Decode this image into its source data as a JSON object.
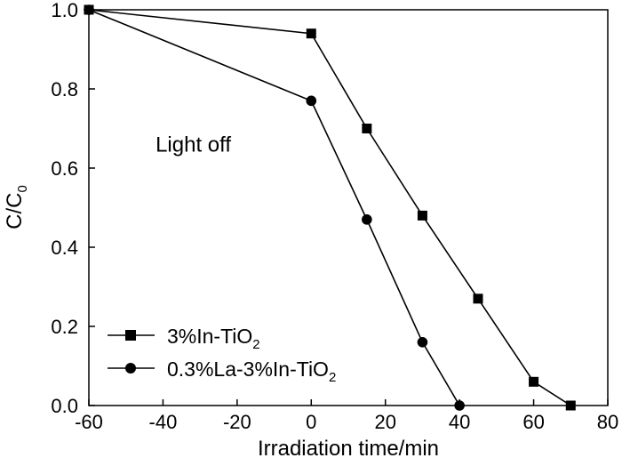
{
  "chart_data": {
    "type": "line",
    "title": "",
    "xlabel": "Irradiation time/min",
    "ylabel": {
      "main": "C/C",
      "sub": "0"
    },
    "xlim": [
      -60,
      80
    ],
    "ylim": [
      0.0,
      1.0
    ],
    "xticks": [
      -60,
      -40,
      -20,
      0,
      20,
      40,
      60,
      80
    ],
    "xtick_labels": [
      "-60",
      "-40",
      "-20",
      "0",
      "20",
      "40",
      "60",
      "80"
    ],
    "yticks": [
      0.0,
      0.2,
      0.4,
      0.6,
      0.8,
      1.0
    ],
    "ytick_labels": [
      "0.0",
      "0.2",
      "0.4",
      "0.6",
      "0.8",
      "1.0"
    ],
    "grid": false,
    "legend_position": "bottom-left",
    "annotations": [
      {
        "text": "Light off",
        "x": -42,
        "y": 0.66
      }
    ],
    "series": [
      {
        "name": "3%In-TiO2",
        "label_main": "3%In-TiO",
        "label_sub": "2",
        "marker": "square",
        "x": [
          -60,
          0,
          15,
          30,
          45,
          60,
          70
        ],
        "y": [
          1.0,
          0.94,
          0.7,
          0.48,
          0.27,
          0.06,
          0.0
        ]
      },
      {
        "name": "0.3%La-3%In-TiO2",
        "label_main": "0.3%La-3%In-TiO",
        "label_sub": "2",
        "marker": "circle",
        "x": [
          -60,
          0,
          15,
          30,
          40
        ],
        "y": [
          1.0,
          0.77,
          0.47,
          0.16,
          0.0
        ]
      }
    ]
  }
}
